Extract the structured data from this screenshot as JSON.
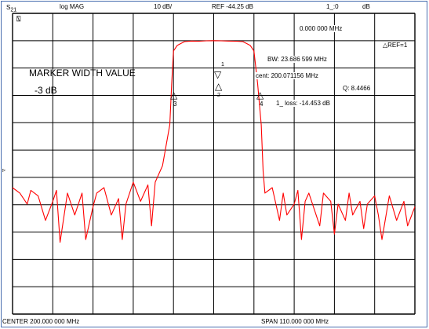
{
  "header": {
    "measurement": "S",
    "measurement_sub": "21",
    "format": "log MAG",
    "scale": "10 dB/",
    "reference": "REF -44.25 dB",
    "marker_readout": "1_:0",
    "marker_unit": "dB"
  },
  "footer": {
    "center": "CENTER  200.000 000 MHz",
    "span": "SPAN  110.000 000 MHz"
  },
  "screen": {
    "channel_icon": "⍂",
    "marker_freq": "0.000 000 MHz",
    "ref_marker": "△REF=1",
    "annotation_title": "MARKER WIDTH VALUE",
    "annotation_value": "-3 dB",
    "bw": "BW:  23.686 599 MHz",
    "cent": "cent:  200.071156 MHz",
    "q": "Q: 8.4466",
    "loss": "1_ loss: -14.453 dB",
    "ref_pos_icon": "▹"
  },
  "markers": [
    {
      "label": "1",
      "symbol": "▽"
    },
    {
      "label": "2",
      "symbol": "△"
    },
    {
      "label": "3",
      "symbol": "△"
    },
    {
      "label": "4",
      "symbol": "△"
    }
  ],
  "colors": {
    "trace": "#ff0000",
    "grid": "#000000",
    "frame": "#4a6fb0"
  },
  "chart_data": {
    "type": "line",
    "x_range_mhz": [
      145,
      255
    ],
    "scale_db_per_div": 10,
    "ref_db": -44.25,
    "grid": true,
    "series": [
      {
        "x": [
          145,
          147,
          149,
          150,
          152,
          154,
          156,
          157,
          158,
          160,
          162,
          164,
          165,
          166,
          167,
          168,
          170,
          172,
          174,
          175,
          176,
          178,
          180,
          181,
          182,
          183,
          184,
          185,
          186,
          188,
          188.5,
          189,
          190,
          192,
          194,
          196,
          198,
          200,
          202,
          204,
          206,
          208,
          210,
          211,
          212,
          213,
          213.5,
          214,
          216,
          217,
          218,
          219,
          220,
          222,
          223,
          224,
          225,
          226,
          228,
          229,
          230,
          232,
          233,
          234,
          236,
          237,
          238,
          240,
          241,
          242,
          244,
          245,
          246,
          248,
          250,
          252,
          253,
          255
        ],
        "y": [
          -98,
          -100,
          -104,
          -99,
          -101,
          -110,
          -103,
          -99,
          -118,
          -100,
          -108,
          -100,
          -117,
          -111,
          -105,
          -100,
          -98,
          -108,
          -102,
          -117,
          -104,
          -96,
          -103,
          -100,
          -97,
          -112,
          -96,
          -93,
          -90,
          -75,
          -60,
          -48,
          -46,
          -44.6,
          -44.4,
          -44.45,
          -44.3,
          -44.25,
          -44.3,
          -44.4,
          -44.45,
          -44.6,
          -46,
          -48,
          -60,
          -75,
          -92,
          -100,
          -98,
          -104,
          -110,
          -100,
          -108,
          -104,
          -99,
          -117,
          -103,
          -100,
          -108,
          -112,
          -100,
          -103,
          -115,
          -104,
          -110,
          -100,
          -108,
          -103,
          -113,
          -104,
          -101,
          -108,
          -117,
          -101,
          -110,
          -103,
          -112,
          -105
        ]
      }
    ]
  }
}
